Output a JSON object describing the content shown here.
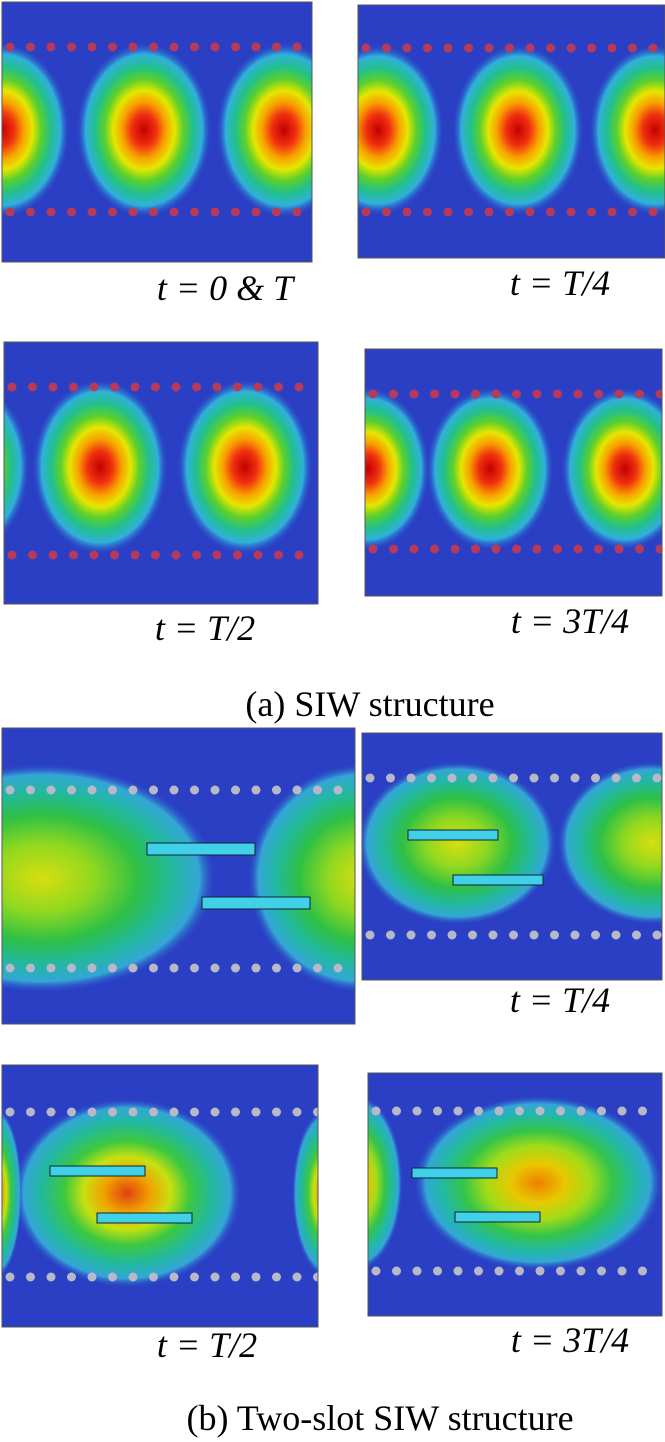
{
  "figure": {
    "panels_a": [
      "t = 0 & T",
      "t = T/4",
      "t = T/2",
      "t = 3T/4"
    ],
    "caption_a": "(a)   SIW structure",
    "panels_b": [
      "t = T/4",
      "t = T/2",
      "t = 3T/4"
    ],
    "caption_b": "(b)   Two-slot SIW structure"
  }
}
